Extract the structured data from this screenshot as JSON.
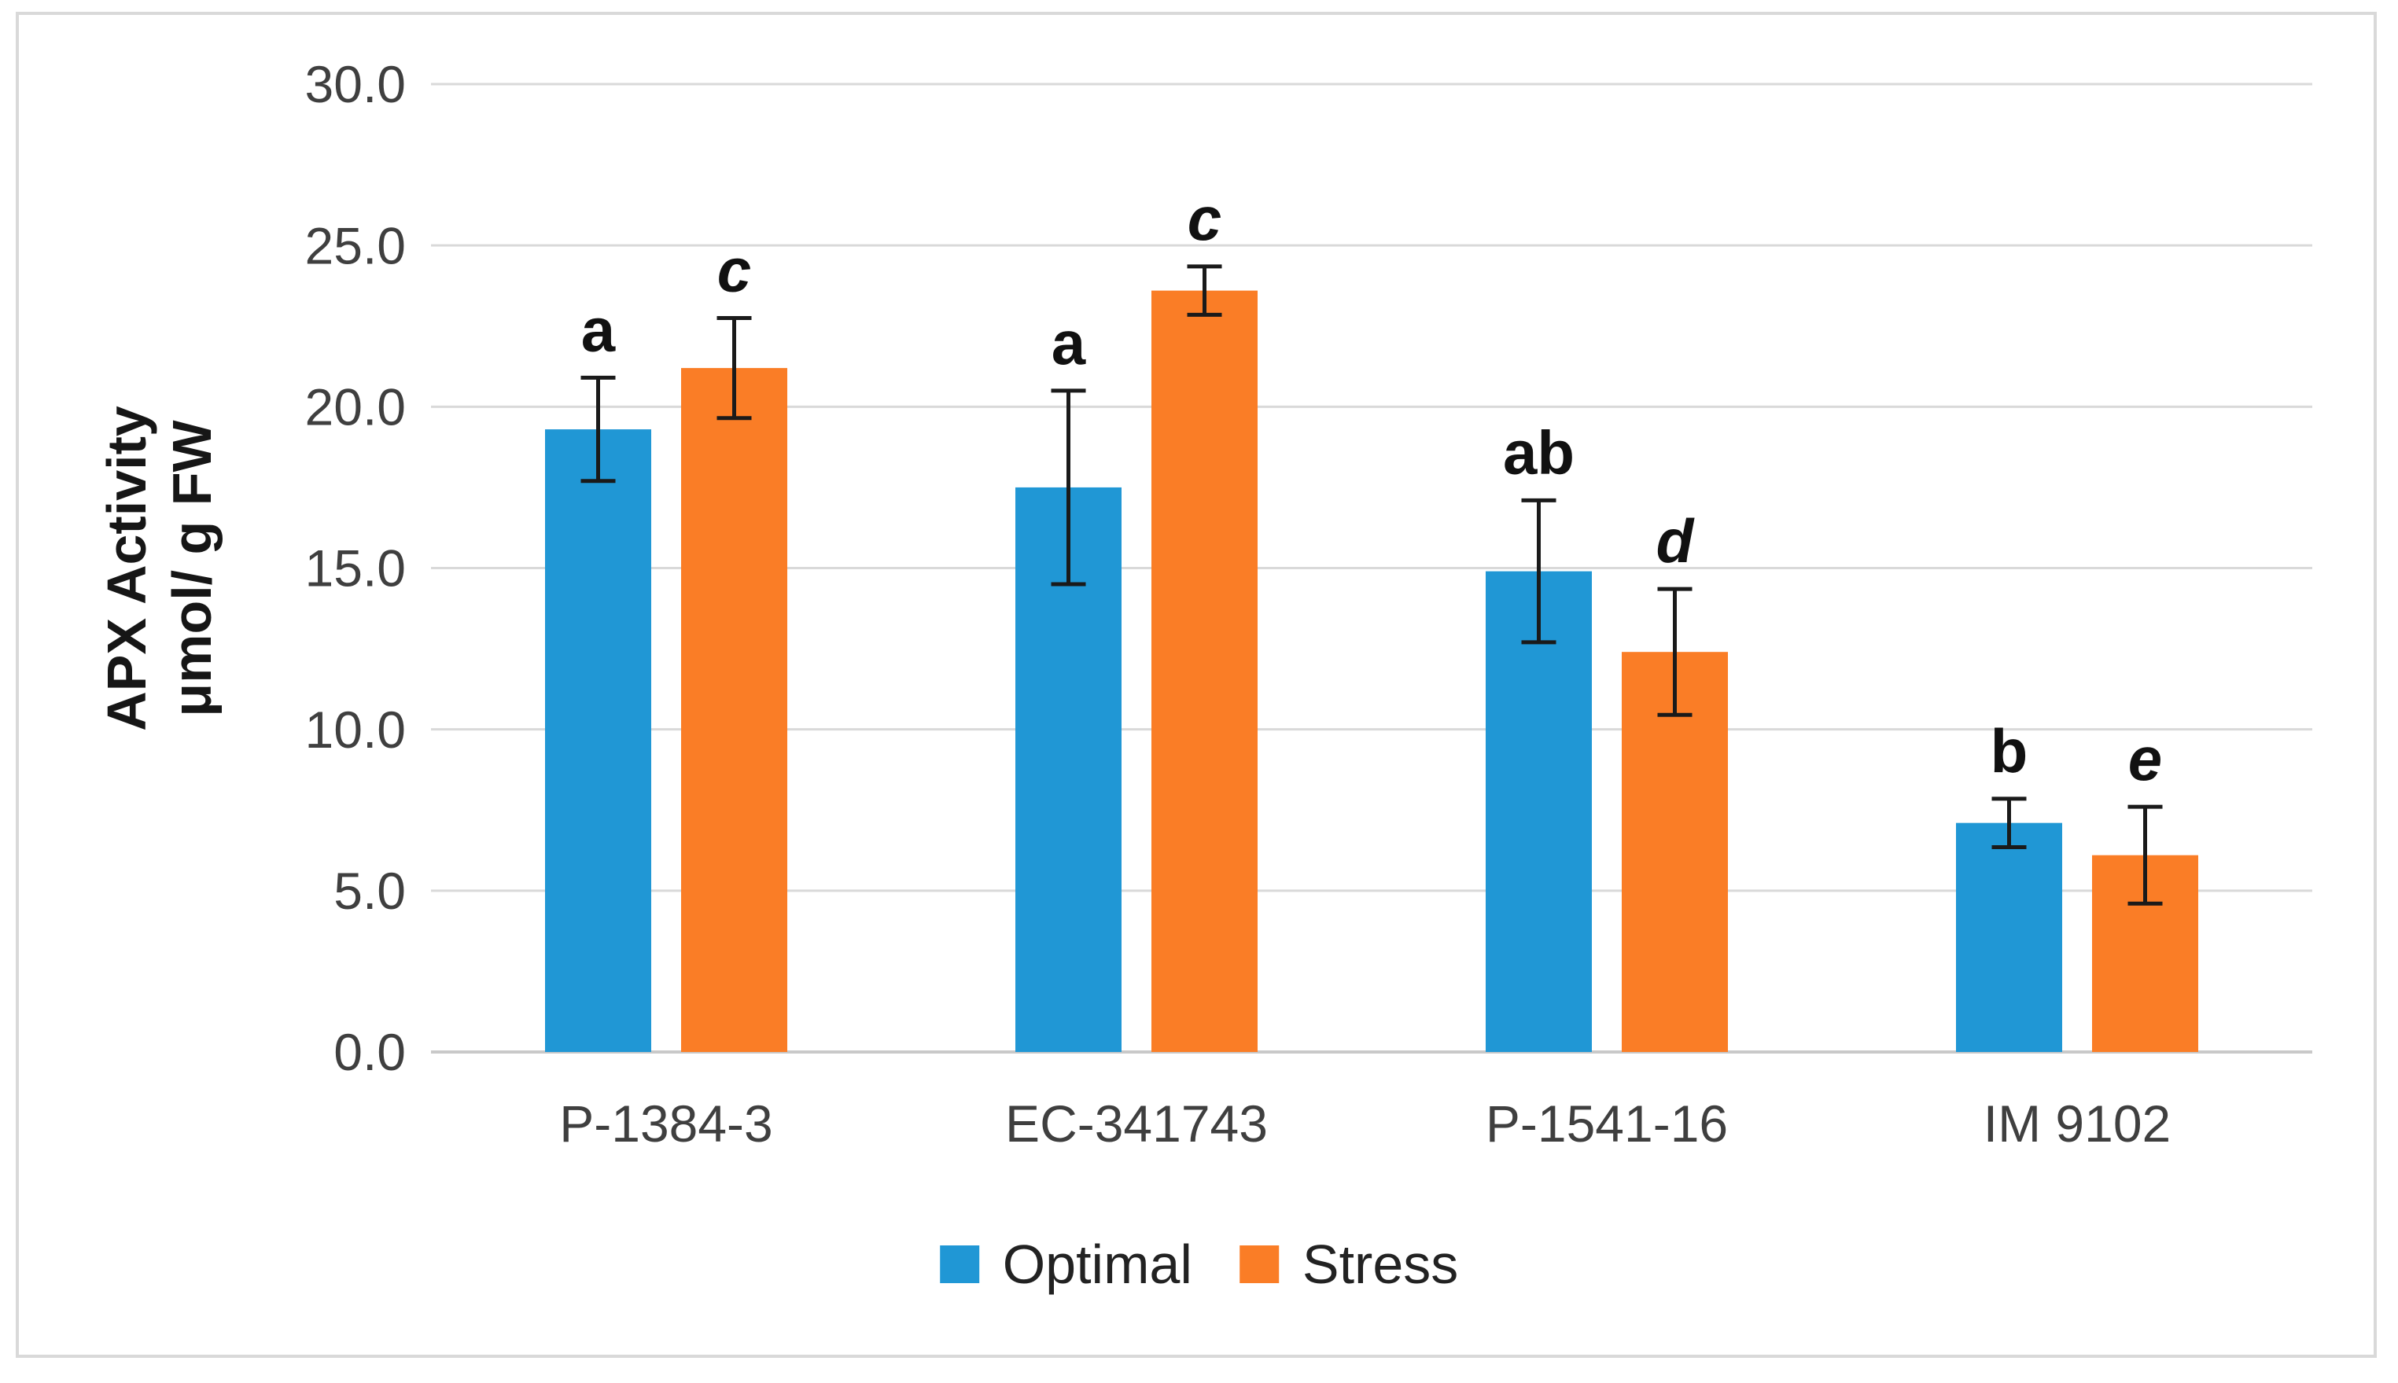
{
  "figure": {
    "background": "#ffffff",
    "border_color": "#d9d9d9"
  },
  "chart_data": {
    "type": "bar",
    "ylabel_lines": [
      "APX Activity",
      "μmol/ g FW"
    ],
    "categories": [
      "P-1384-3",
      "EC-341743",
      "P-1541-16",
      "IM 9102"
    ],
    "series": [
      {
        "name": "Optimal",
        "color": "#2097d5",
        "values": [
          19.3,
          17.5,
          14.9,
          7.1
        ],
        "errors": [
          1.6,
          3.0,
          2.2,
          0.75
        ],
        "letters": [
          "a",
          "a",
          "ab",
          "b"
        ],
        "letters_italic": false
      },
      {
        "name": "Stress",
        "color": "#fa7d26",
        "values": [
          21.2,
          23.6,
          12.4,
          6.1
        ],
        "errors": [
          1.55,
          0.75,
          1.95,
          1.5
        ],
        "letters": [
          "c",
          "c",
          "d",
          "e"
        ],
        "letters_italic": true
      }
    ],
    "y_axis": {
      "min": 0,
      "max": 30,
      "step": 5,
      "tick_labels": [
        "0.0",
        "5.0",
        "10.0",
        "15.0",
        "20.0",
        "25.0",
        "30.0"
      ]
    },
    "grid": true,
    "legend_position": "bottom",
    "gridline_color": "#d9d9d9",
    "error_bar_color": "#1a1a1a"
  }
}
